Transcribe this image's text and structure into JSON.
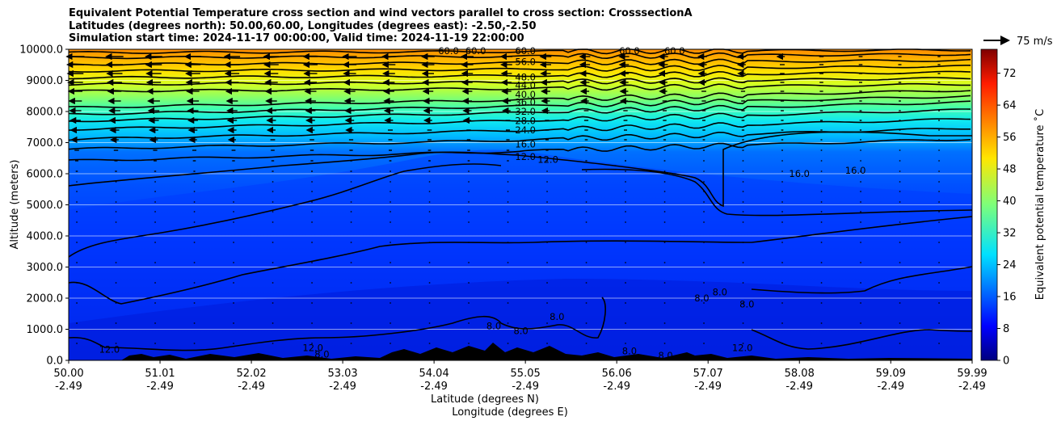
{
  "title_lines": [
    "Equivalent Potential Temperature cross section and wind vectors parallel to cross section: CrosssectionA",
    "Latitudes (degrees north): 50.00,60.00, Longitudes (degrees east): -2.50,-2.50",
    "Simulation start time: 2024-11-17 00:00:00, Valid time: 2024-11-19 22:00:00"
  ],
  "chart_data": {
    "type": "heatmap",
    "ylabel": "Altitude (meters)",
    "xlabel_lines": [
      "Latitude (degrees N)",
      "Longitude (degrees E)"
    ],
    "ylim": [
      0,
      10000
    ],
    "y_ticks": [
      "0.0",
      "1000.0",
      "2000.0",
      "3000.0",
      "4000.0",
      "5000.0",
      "6000.0",
      "7000.0",
      "8000.0",
      "9000.0",
      "10000.0"
    ],
    "y_tick_values": [
      0,
      1000,
      2000,
      3000,
      4000,
      5000,
      6000,
      7000,
      8000,
      9000,
      10000
    ],
    "x_ticks": [
      {
        "lat": "50.00",
        "lon": "-2.49"
      },
      {
        "lat": "51.01",
        "lon": "-2.49"
      },
      {
        "lat": "52.02",
        "lon": "-2.49"
      },
      {
        "lat": "53.03",
        "lon": "-2.49"
      },
      {
        "lat": "54.04",
        "lon": "-2.49"
      },
      {
        "lat": "55.05",
        "lon": "-2.49"
      },
      {
        "lat": "56.06",
        "lon": "-2.49"
      },
      {
        "lat": "57.07",
        "lon": "-2.49"
      },
      {
        "lat": "58.08",
        "lon": "-2.49"
      },
      {
        "lat": "59.09",
        "lon": "-2.49"
      },
      {
        "lat": "59.99",
        "lon": "-2.49"
      }
    ],
    "x_tick_values": [
      50.0,
      51.01,
      52.02,
      53.03,
      54.04,
      55.05,
      56.06,
      57.07,
      58.08,
      59.09,
      59.99
    ],
    "xlim": [
      50.0,
      59.99
    ],
    "grid": "horizontal",
    "colorbar": {
      "label": "Equivalent potential temperature ˚C",
      "ticks": [
        "0",
        "8",
        "16",
        "24",
        "32",
        "40",
        "48",
        "56",
        "64",
        "72"
      ],
      "tick_values": [
        0,
        8,
        16,
        24,
        32,
        40,
        48,
        56,
        64,
        72
      ],
      "range": [
        0,
        78
      ],
      "colormap": "jet"
    },
    "wind_key": "75 m/s",
    "contour_labels": [
      {
        "text": "60.0",
        "lat": 54.2,
        "alt": 9950
      },
      {
        "text": "60.0",
        "lat": 54.5,
        "alt": 9950
      },
      {
        "text": "60.0",
        "lat": 55.05,
        "alt": 9950
      },
      {
        "text": "60.0",
        "lat": 56.2,
        "alt": 9950
      },
      {
        "text": "60.0",
        "lat": 56.7,
        "alt": 9950
      },
      {
        "text": "56.0",
        "lat": 55.05,
        "alt": 9600
      },
      {
        "text": "48.0",
        "lat": 55.05,
        "alt": 9100
      },
      {
        "text": "44.0",
        "lat": 55.05,
        "alt": 8850
      },
      {
        "text": "40.0",
        "lat": 55.05,
        "alt": 8550
      },
      {
        "text": "36.0",
        "lat": 55.05,
        "alt": 8300
      },
      {
        "text": "32.0",
        "lat": 55.05,
        "alt": 8000
      },
      {
        "text": "28.0",
        "lat": 55.05,
        "alt": 7700
      },
      {
        "text": "24.0",
        "lat": 55.05,
        "alt": 7400
      },
      {
        "text": "16.0",
        "lat": 55.05,
        "alt": 6950
      },
      {
        "text": "12.0",
        "lat": 55.05,
        "alt": 6550
      },
      {
        "text": "12.0",
        "lat": 55.3,
        "alt": 6450
      },
      {
        "text": "16.0",
        "lat": 58.08,
        "alt": 6000
      },
      {
        "text": "16.0",
        "lat": 58.7,
        "alt": 6100
      },
      {
        "text": "12.0",
        "lat": 50.45,
        "alt": 350
      },
      {
        "text": "12.0",
        "lat": 52.7,
        "alt": 400
      },
      {
        "text": "8.0",
        "lat": 52.8,
        "alt": 200
      },
      {
        "text": "8.0",
        "lat": 54.7,
        "alt": 1100
      },
      {
        "text": "8.0",
        "lat": 55.0,
        "alt": 950
      },
      {
        "text": "8.0",
        "lat": 55.4,
        "alt": 1400
      },
      {
        "text": "8.0",
        "lat": 56.2,
        "alt": 300
      },
      {
        "text": "8.0",
        "lat": 56.6,
        "alt": 150
      },
      {
        "text": "8.0",
        "lat": 57.0,
        "alt": 2000
      },
      {
        "text": "8.0",
        "lat": 57.2,
        "alt": 2200
      },
      {
        "text": "8.0",
        "lat": 57.5,
        "alt": 1800
      },
      {
        "text": "12.0",
        "lat": 57.45,
        "alt": 400
      }
    ]
  }
}
